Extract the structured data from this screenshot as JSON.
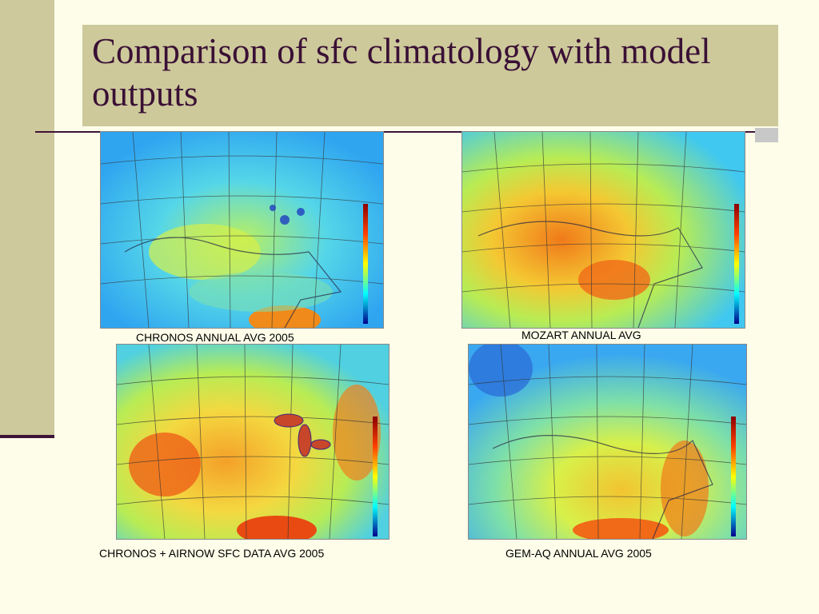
{
  "slide": {
    "title": "Comparison of sfc climatology with model outputs"
  },
  "panels": [
    {
      "caption": "CHRONOS ANNUAL AVG 2005",
      "map_icon": "ozone-map-chronos"
    },
    {
      "caption": "MOZART ANNUAL AVG",
      "map_icon": "ozone-map-mozart"
    },
    {
      "caption": "CHRONOS + AIRNOW SFC DATA AVG 2005",
      "map_icon": "ozone-map-chronos-airnow"
    },
    {
      "caption": "GEM-AQ ANNUAL AVG 2005",
      "map_icon": "ozone-map-gemaq"
    }
  ],
  "colors": {
    "accent_bar": "#cec99c",
    "title_text": "#3a1035",
    "rule_line": "#3d1438"
  }
}
